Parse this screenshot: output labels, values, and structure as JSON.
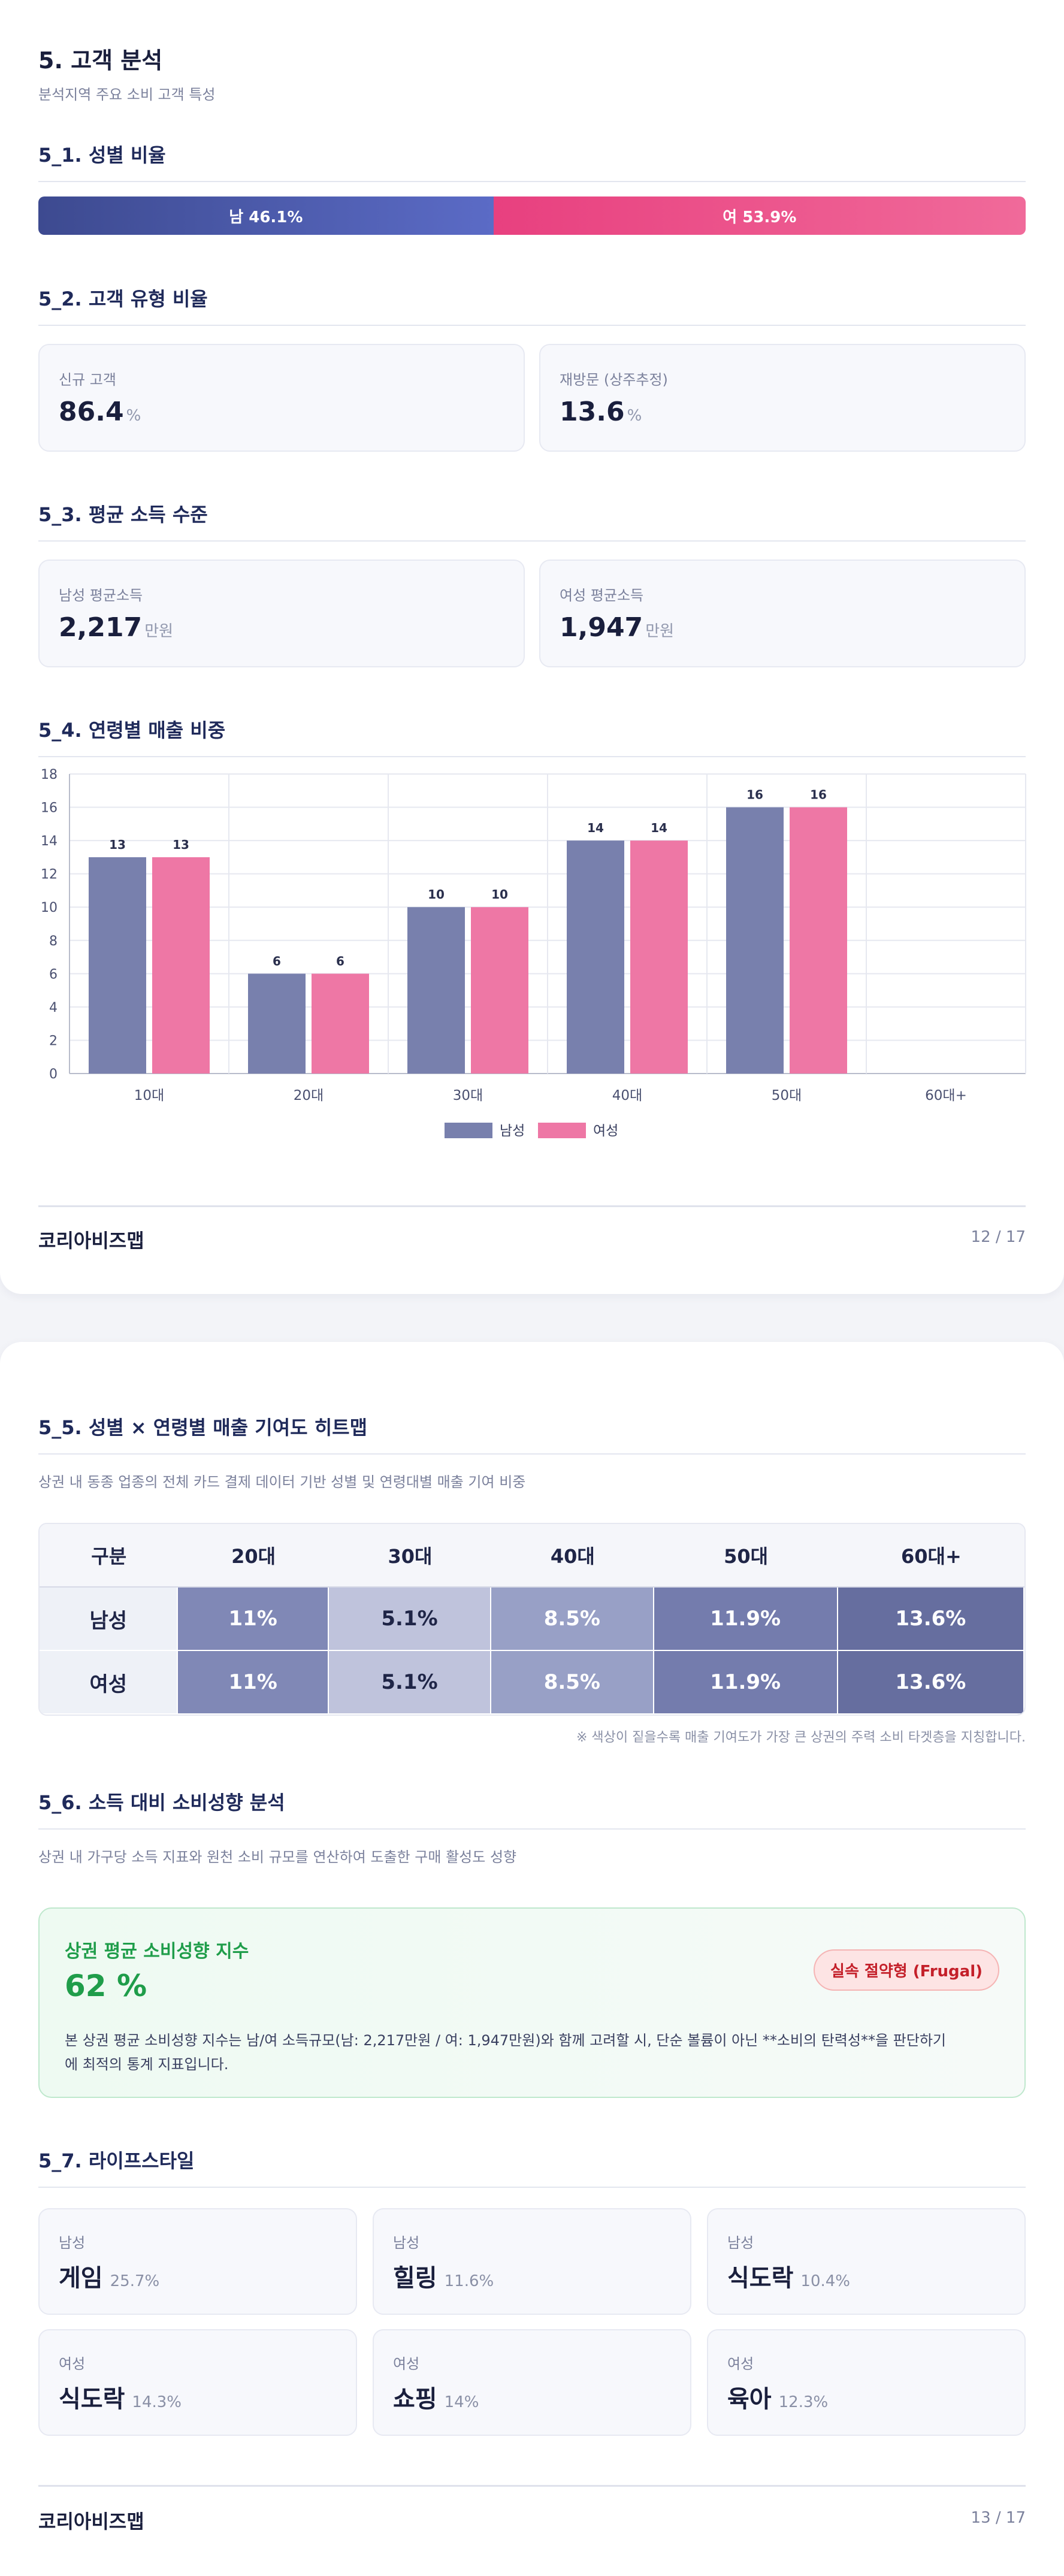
{
  "page1": {
    "title": "5. 고객 분석",
    "subtitle": "분석지역 주요 소비 고객 특성",
    "s1": {
      "title": "5_1. 성별 비율",
      "male_label": "남 46.1%",
      "female_label": "여 53.9%",
      "male_ratio": 46.1,
      "female_ratio": 53.9
    },
    "s2": {
      "title": "5_2. 고객 유형 비율",
      "new_label": "신규 고객",
      "new_value": "86.4",
      "new_unit": "%",
      "return_label": "재방문 (상주추정)",
      "return_value": "13.6",
      "return_unit": "%"
    },
    "s3": {
      "title": "5_3. 평균 소득 수준",
      "male_label": "남성 평균소득",
      "male_value": "2,217",
      "male_unit": "만원",
      "female_label": "여성 평균소득",
      "female_value": "1,947",
      "female_unit": "만원"
    },
    "s4": {
      "title": "5_4. 연령별 매출 비중"
    },
    "footer": {
      "brand": "코리아비즈맵",
      "page": "12 / 17"
    }
  },
  "chart_data": {
    "type": "bar",
    "categories": [
      "10대",
      "20대",
      "30대",
      "40대",
      "50대",
      "60대+"
    ],
    "series": [
      {
        "name": "남성",
        "values": [
          13,
          6,
          10,
          14,
          16,
          null
        ],
        "color": "#7880ad"
      },
      {
        "name": "여성",
        "values": [
          13,
          6,
          10,
          14,
          16,
          null
        ],
        "color": "#ee77a5"
      }
    ],
    "data_labels": [
      "13",
      "13",
      "6",
      "6",
      "10",
      "10",
      "14",
      "14",
      "16",
      "16"
    ],
    "yticks": [
      "0",
      "2",
      "4",
      "6",
      "8",
      "10",
      "12",
      "14",
      "16",
      "18"
    ],
    "ylim": [
      0,
      18
    ],
    "grid": true,
    "legend_position": "bottom-center"
  },
  "page2": {
    "s5": {
      "title": "5_5. 성별 × 연령별 매출 기여도 히트맵",
      "desc": "상권 내 동종 업종의 전체 카드 결제 데이터 기반 성별 및 연령대별 매출 기여 비중",
      "headers": [
        "구분",
        "20대",
        "30대",
        "40대",
        "50대",
        "60대+"
      ],
      "rows": [
        {
          "label": "남성",
          "cells": [
            "11%",
            "5.1%",
            "8.5%",
            "11.9%",
            "13.6%"
          ]
        },
        {
          "label": "여성",
          "cells": [
            "11%",
            "5.1%",
            "8.5%",
            "11.9%",
            "13.6%"
          ]
        }
      ],
      "cell_colors": [
        "#8088b6",
        "#bfc3dc",
        "#98a0c6",
        "#747cad",
        "#666e9f"
      ],
      "cell_text_colors": [
        "#ffffff",
        "#1f2547",
        "#ffffff",
        "#ffffff",
        "#ffffff"
      ],
      "note": "※ 색상이 짙을수록 매출 기여도가 가장 큰 상권의 주력 소비 타겟층을 지칭합니다."
    },
    "s6": {
      "title": "5_6. 소득 대비 소비성향 분석",
      "desc": "상권 내 가구당 소득 지표와 원천 소비 규모를 연산하여 도출한 구매 활성도 성향",
      "card_title": "상권 평균 소비성향 지수",
      "card_value": "62 %",
      "badge": "실속 절약형 (Frugal)",
      "body_line1": "본 상권 평균 소비성향 지수는 남/여 소득규모(남: 2,217만원 / 여: 1,947만원)와 함께 고려할 시, 단순 볼륨이 아닌 **소비의 탄력성**을 판단하기",
      "body_line2": "에 최적의 통계 지표입니다."
    },
    "s7": {
      "title": "5_7. 라이프스타일",
      "items": [
        {
          "gender": "남성",
          "name": "게임",
          "pct": "25.7%"
        },
        {
          "gender": "남성",
          "name": "힐링",
          "pct": "11.6%"
        },
        {
          "gender": "남성",
          "name": "식도락",
          "pct": "10.4%"
        },
        {
          "gender": "여성",
          "name": "식도락",
          "pct": "14.3%"
        },
        {
          "gender": "여성",
          "name": "쇼핑",
          "pct": "14%"
        },
        {
          "gender": "여성",
          "name": "육아",
          "pct": "12.3%"
        }
      ]
    },
    "footer": {
      "brand": "코리아비즈맵",
      "page": "13 / 17"
    }
  },
  "colors": {
    "male": "#5b6bc6",
    "female": "#e8407f",
    "index_green": "#1f9d4a",
    "badge_red": "#c4202a"
  }
}
